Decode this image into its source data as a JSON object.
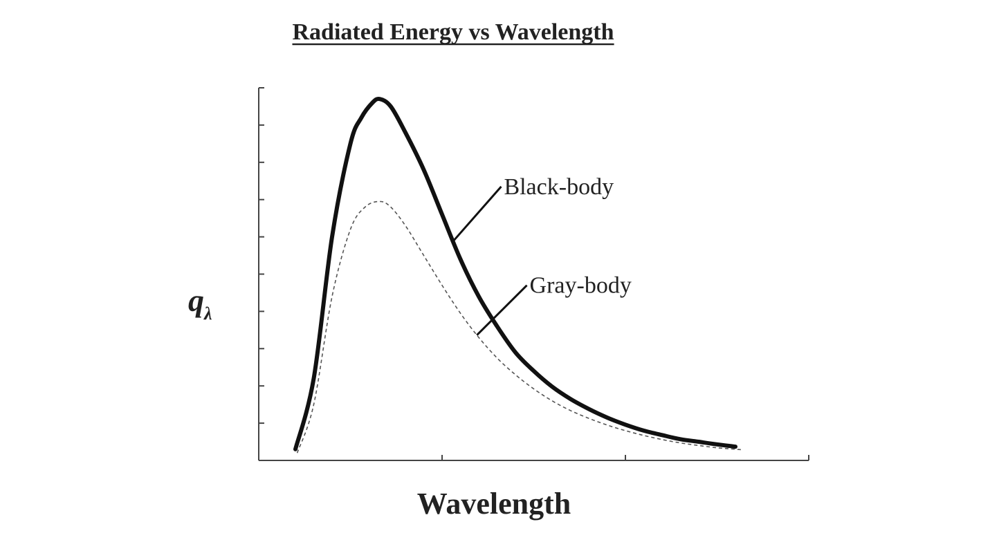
{
  "chart_data": {
    "type": "line",
    "title": "Radiated Energy vs Wavelength",
    "xlabel": "Wavelength",
    "ylabel": "q",
    "ylabel_subscript": "λ",
    "xlim": [
      0,
      3
    ],
    "ylim": [
      0,
      10
    ],
    "x_ticks": [
      0,
      1,
      2,
      3
    ],
    "y_ticks": [
      0,
      1,
      2,
      3,
      4,
      5,
      6,
      7,
      8,
      9,
      10
    ],
    "tick_labels_shown": false,
    "grid": false,
    "legend": "none",
    "series": [
      {
        "name": "Black-body",
        "style": "solid-thick",
        "color": "#111111",
        "points": [
          [
            0.2,
            0.3
          ],
          [
            0.3,
            2.2
          ],
          [
            0.4,
            6.0
          ],
          [
            0.5,
            8.5
          ],
          [
            0.56,
            9.2
          ],
          [
            0.62,
            9.6
          ],
          [
            0.66,
            9.7
          ],
          [
            0.72,
            9.5
          ],
          [
            0.8,
            8.8
          ],
          [
            0.9,
            7.8
          ],
          [
            1.0,
            6.6
          ],
          [
            1.1,
            5.4
          ],
          [
            1.2,
            4.4
          ],
          [
            1.3,
            3.6
          ],
          [
            1.4,
            2.9
          ],
          [
            1.5,
            2.4
          ],
          [
            1.6,
            1.98
          ],
          [
            1.7,
            1.65
          ],
          [
            1.8,
            1.38
          ],
          [
            1.9,
            1.15
          ],
          [
            2.0,
            0.96
          ],
          [
            2.1,
            0.8
          ],
          [
            2.2,
            0.68
          ],
          [
            2.3,
            0.57
          ],
          [
            2.4,
            0.5
          ],
          [
            2.5,
            0.43
          ],
          [
            2.6,
            0.37
          ]
        ]
      },
      {
        "name": "Gray-body",
        "style": "dashed-thin",
        "color": "#555555",
        "points": [
          [
            0.21,
            0.2
          ],
          [
            0.3,
            1.5
          ],
          [
            0.4,
            4.4
          ],
          [
            0.5,
            6.2
          ],
          [
            0.58,
            6.8
          ],
          [
            0.66,
            6.95
          ],
          [
            0.72,
            6.8
          ],
          [
            0.8,
            6.3
          ],
          [
            0.9,
            5.5
          ],
          [
            1.0,
            4.7
          ],
          [
            1.1,
            3.95
          ],
          [
            1.2,
            3.3
          ],
          [
            1.3,
            2.75
          ],
          [
            1.4,
            2.3
          ],
          [
            1.5,
            1.92
          ],
          [
            1.6,
            1.6
          ],
          [
            1.7,
            1.34
          ],
          [
            1.8,
            1.13
          ],
          [
            1.9,
            0.95
          ],
          [
            2.0,
            0.8
          ],
          [
            2.1,
            0.67
          ],
          [
            2.2,
            0.56
          ],
          [
            2.3,
            0.47
          ],
          [
            2.4,
            0.4
          ],
          [
            2.5,
            0.34
          ],
          [
            2.6,
            0.3
          ],
          [
            2.63,
            0.29
          ]
        ]
      }
    ],
    "annotations": [
      {
        "text": "Black-body",
        "series": "Black-body",
        "at_x": 1.06,
        "label_x": 1.33,
        "label_y": 7.35
      },
      {
        "text": "Gray-body",
        "series": "Gray-body",
        "at_x": 1.19,
        "label_x": 1.47,
        "label_y": 4.7
      }
    ]
  }
}
